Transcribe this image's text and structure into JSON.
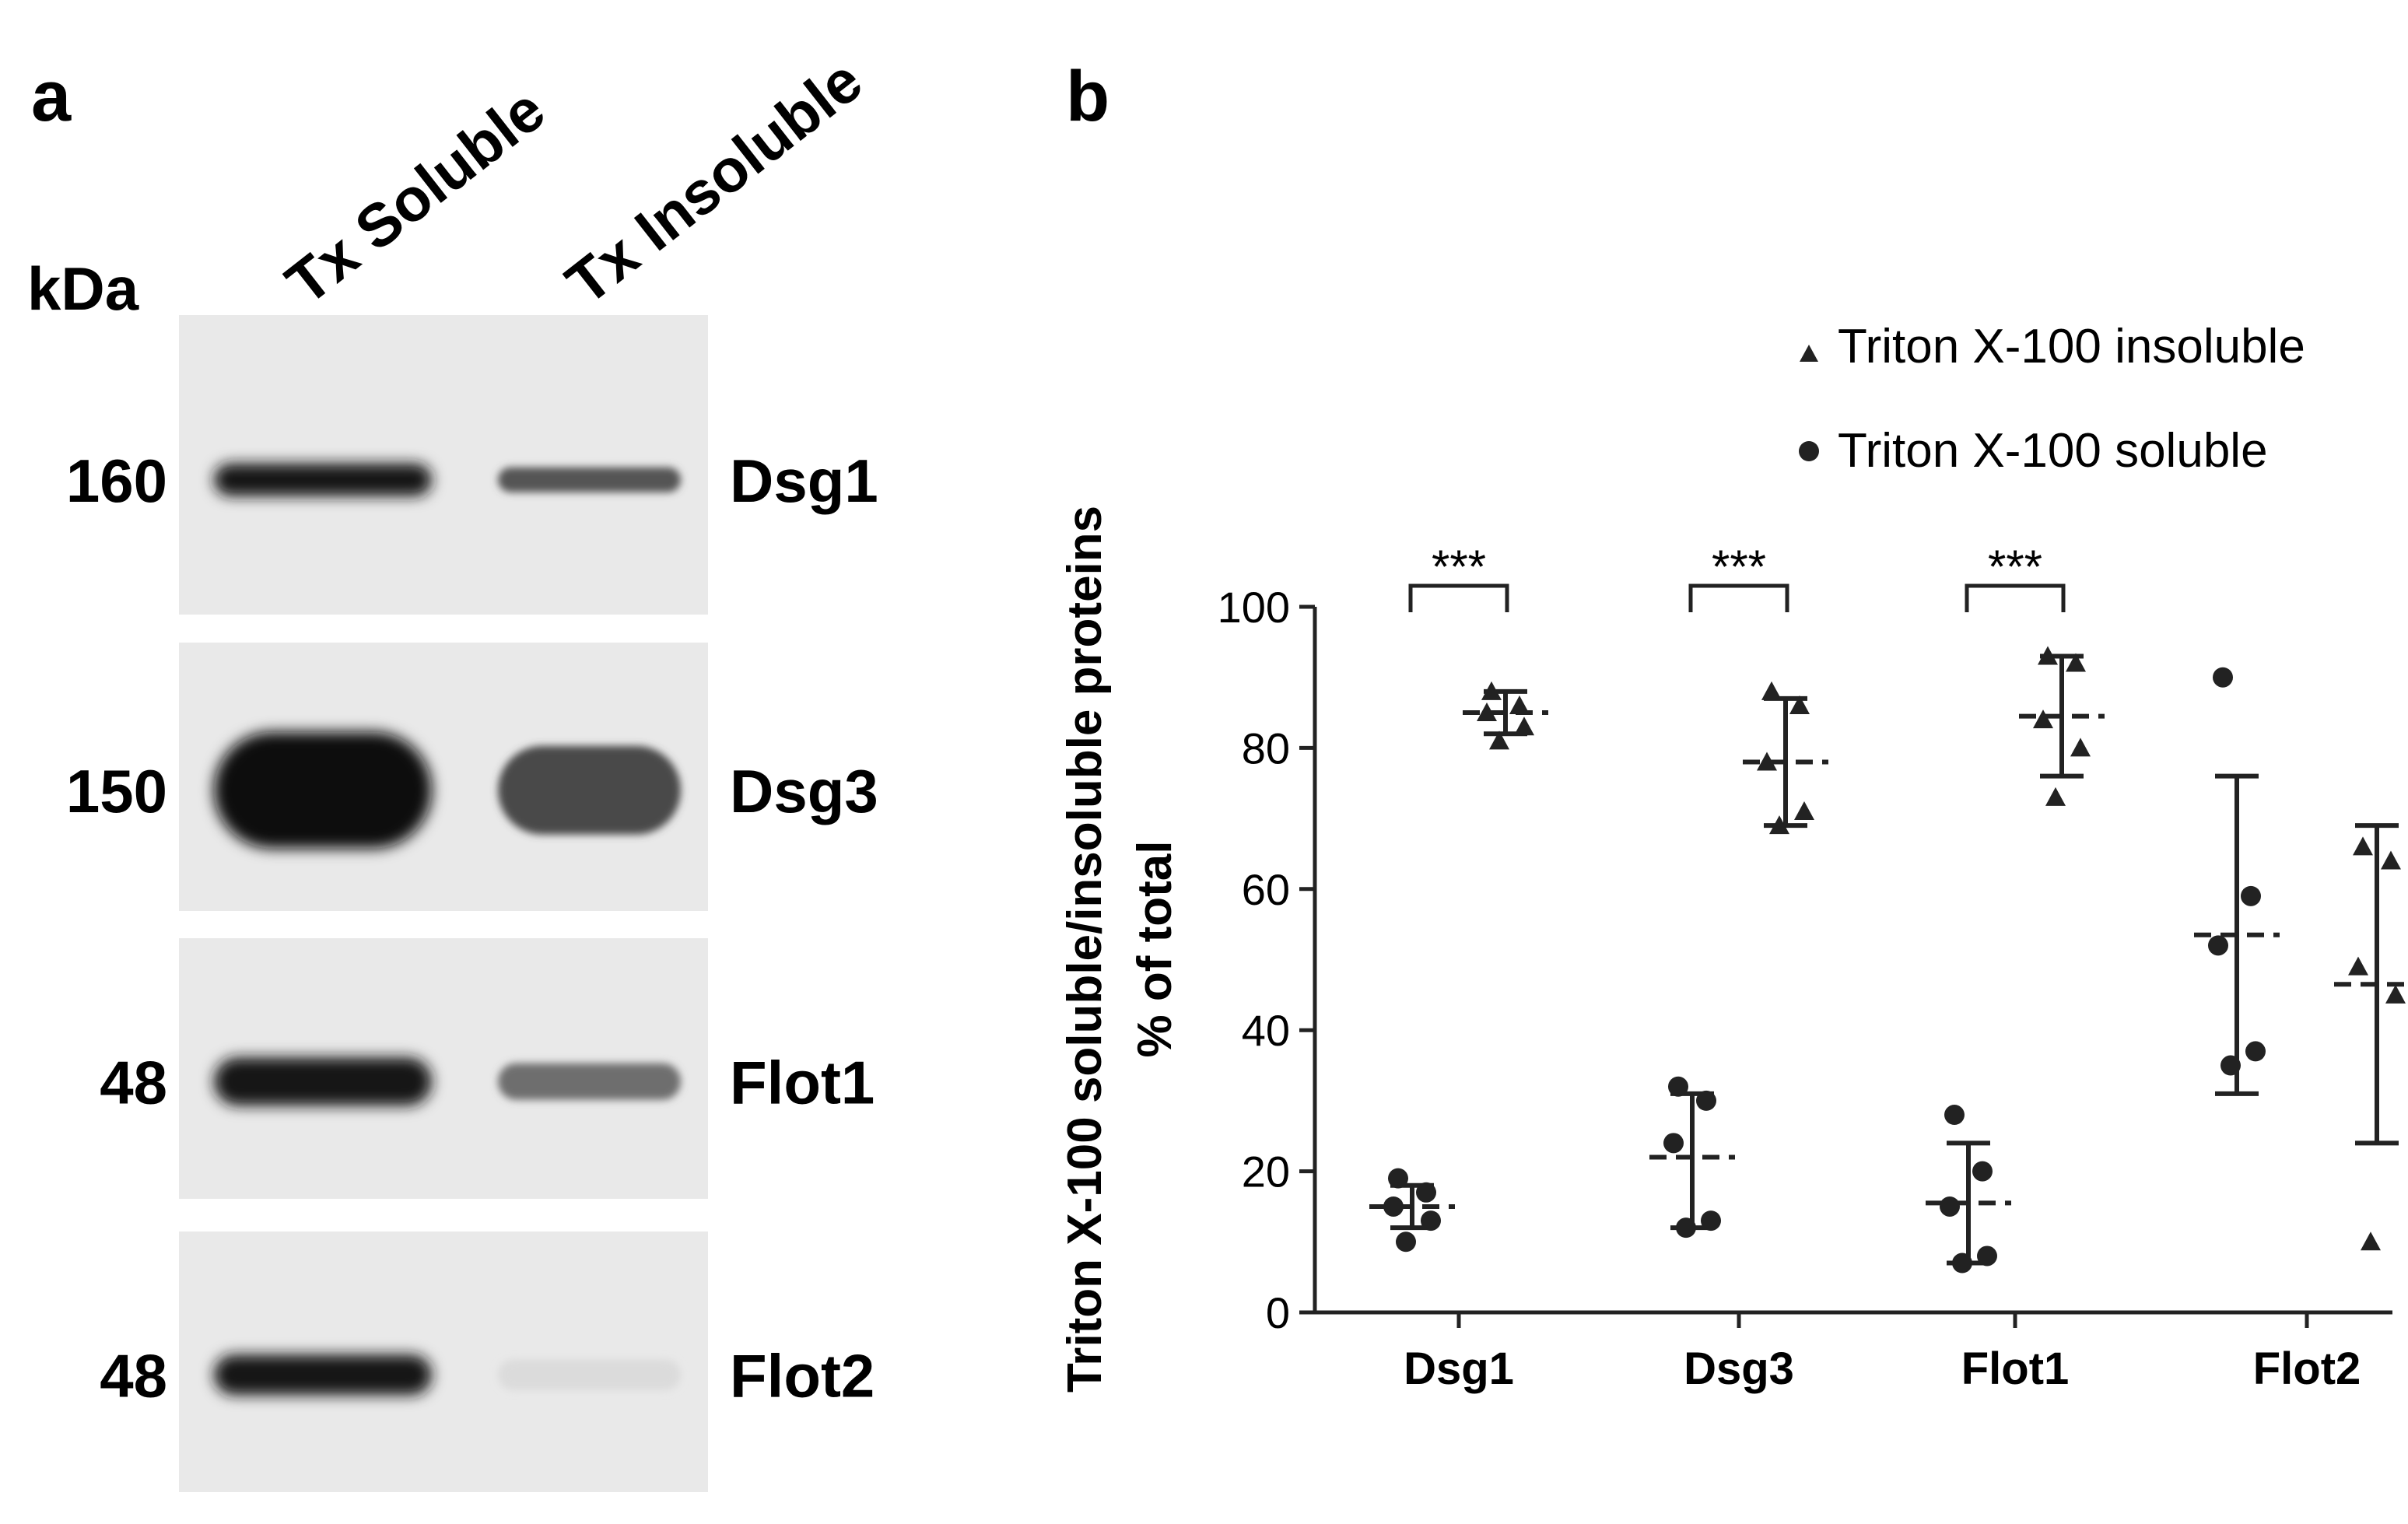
{
  "panel_a": {
    "label": "a",
    "unit_label": "kDa",
    "lanes": [
      "Tx Soluble",
      "Tx Insoluble"
    ],
    "blots": [
      {
        "protein": "Dsg1",
        "kda": "160",
        "soluble_intensity": 0.95,
        "insoluble_intensity": 0.7
      },
      {
        "protein": "Dsg3",
        "kda": "150",
        "soluble_intensity": 1.0,
        "insoluble_intensity": 0.75
      },
      {
        "protein": "Flot1",
        "kda": "48",
        "soluble_intensity": 0.95,
        "insoluble_intensity": 0.6
      },
      {
        "protein": "Flot2",
        "kda": "48",
        "soluble_intensity": 0.95,
        "insoluble_intensity": 0.15
      }
    ]
  },
  "chart_data": {
    "panel_label": "b",
    "type": "scatter",
    "title": "",
    "ylabel_line1": "Triton X-100 soluble/insoluble proteins",
    "ylabel_line2": "% of total",
    "xlabel": "",
    "ylim": [
      0,
      100
    ],
    "yticks": [
      0,
      20,
      40,
      60,
      80,
      100
    ],
    "categories": [
      "Dsg1",
      "Dsg3",
      "Flot1",
      "Flot2"
    ],
    "legend_position": "top-right",
    "series": [
      {
        "name": "Triton X-100 insoluble",
        "marker": "triangle",
        "groups": [
          {
            "category": "Dsg1",
            "points": [
              88,
              86,
              85,
              83,
              81
            ],
            "mean": 85,
            "sd": [
              82,
              88
            ]
          },
          {
            "category": "Dsg3",
            "points": [
              88,
              86,
              78,
              71,
              69
            ],
            "mean": 78,
            "sd": [
              69,
              87
            ]
          },
          {
            "category": "Flot1",
            "points": [
              93,
              92,
              84,
              80,
              73
            ],
            "mean": 84.5,
            "sd": [
              76,
              93
            ]
          },
          {
            "category": "Flot2",
            "points": [
              66,
              64,
              49,
              45,
              10
            ],
            "mean": 46.5,
            "sd": [
              24,
              69
            ]
          }
        ]
      },
      {
        "name": "Triton X-100 soluble",
        "marker": "circle",
        "groups": [
          {
            "category": "Dsg1",
            "points": [
              19,
              17,
              15,
              13,
              10
            ],
            "mean": 15,
            "sd": [
              12,
              18
            ]
          },
          {
            "category": "Dsg3",
            "points": [
              32,
              30,
              24,
              13,
              12
            ],
            "mean": 22,
            "sd": [
              12,
              31
            ]
          },
          {
            "category": "Flot1",
            "points": [
              28,
              20,
              15,
              8,
              7
            ],
            "mean": 15.5,
            "sd": [
              7,
              24
            ]
          },
          {
            "category": "Flot2",
            "points": [
              90,
              59,
              52,
              37,
              35
            ],
            "mean": 53.5,
            "sd": [
              31,
              76
            ]
          }
        ]
      }
    ],
    "significance": [
      {
        "category": "Dsg1",
        "label": "***"
      },
      {
        "category": "Dsg3",
        "label": "***"
      },
      {
        "category": "Flot1",
        "label": "***"
      }
    ]
  }
}
